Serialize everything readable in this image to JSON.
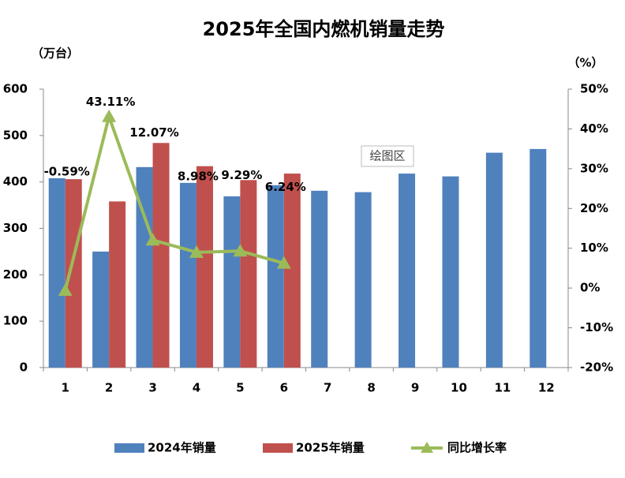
{
  "chart_data": {
    "type": "bar",
    "title": "2025年全国内燃机销量走势",
    "y_label": "（万台）",
    "y2_label": "（%）",
    "tooltip": "绘图区",
    "categories": [
      "1",
      "2",
      "3",
      "4",
      "5",
      "6",
      "7",
      "8",
      "9",
      "10",
      "11",
      "12"
    ],
    "series": [
      {
        "name": "2024年销量",
        "color": "#4f81bd",
        "type": "bar",
        "values": [
          408,
          250,
          432,
          398,
          369,
          393,
          381,
          378,
          418,
          412,
          463,
          471
        ]
      },
      {
        "name": "2025年销量",
        "color": "#c0504d",
        "type": "bar",
        "values": [
          406,
          358,
          484,
          434,
          404,
          418,
          null,
          null,
          null,
          null,
          null,
          null
        ]
      },
      {
        "name": "同比增长率",
        "color": "#9bbb59",
        "type": "line",
        "axis": "y2",
        "values": [
          -0.59,
          43.11,
          12.07,
          8.98,
          9.29,
          6.24,
          null,
          null,
          null,
          null,
          null,
          null
        ],
        "value_labels": [
          "-0.59%",
          "43.11%",
          "12.07%",
          "8.98%",
          "9.29%",
          "6.24%",
          null,
          null,
          null,
          null,
          null,
          null
        ]
      }
    ],
    "ylim": [
      0,
      600
    ],
    "yticks": [
      0,
      100,
      200,
      300,
      400,
      500,
      600
    ],
    "y2lim": [
      -20,
      50
    ],
    "y2ticks": [
      {
        "value": -20,
        "label": "-20%"
      },
      {
        "value": -10,
        "label": "-10%"
      },
      {
        "value": 0,
        "label": "0%"
      },
      {
        "value": 10,
        "label": "10%"
      },
      {
        "value": 20,
        "label": "20%"
      },
      {
        "value": 30,
        "label": "30%"
      },
      {
        "value": 40,
        "label": "40%"
      },
      {
        "value": 50,
        "label": "50%"
      }
    ],
    "legend": "bottom"
  }
}
